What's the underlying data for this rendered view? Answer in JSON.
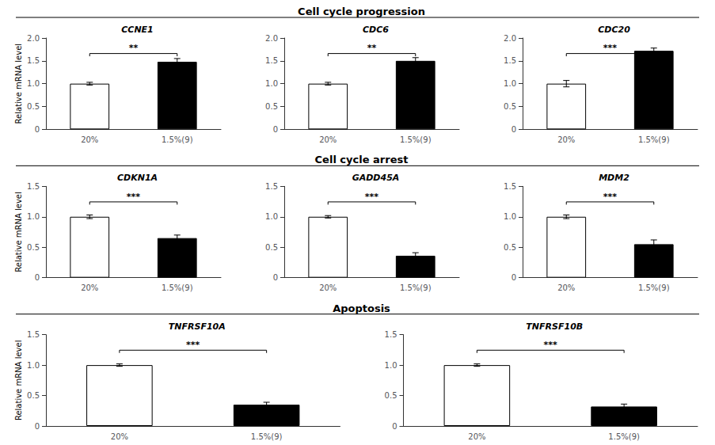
{
  "chart_data": [
    {
      "type": "bar",
      "section_title": "Cell cycle progression",
      "title": "CCNE1",
      "ylabel": "Relative mRNA level",
      "categories": [
        "20%",
        "1.5%(9)"
      ],
      "values": [
        1.0,
        1.48
      ],
      "errors": [
        0.03,
        0.07
      ],
      "annotation": "**",
      "colors": [
        "#ffffff",
        "#000000"
      ],
      "ylim": [
        0,
        2.0
      ],
      "yticks": [
        0,
        0.5,
        {
          "value": 1.0,
          "label": "1.0"
        },
        1.5,
        {
          "value": 2.0,
          "label": "2.0"
        }
      ],
      "grid": false
    },
    {
      "type": "bar",
      "section_title": "Cell cycle progression",
      "title": "CDC6",
      "categories": [
        "20%",
        "1.5%(9)"
      ],
      "values": [
        1.0,
        1.5
      ],
      "errors": [
        0.03,
        0.07
      ],
      "annotation": "**",
      "colors": [
        "#ffffff",
        "#000000"
      ],
      "ylim": [
        0,
        2.0
      ],
      "yticks": [
        0,
        0.5,
        {
          "value": 1.0,
          "label": "1.0"
        },
        1.5,
        {
          "value": 2.0,
          "label": "2.0"
        }
      ],
      "grid": false
    },
    {
      "type": "bar",
      "section_title": "Cell cycle progression",
      "title": "CDC20",
      "categories": [
        "20%",
        "1.5%(9)"
      ],
      "values": [
        1.0,
        1.72
      ],
      "errors": [
        0.07,
        0.06
      ],
      "annotation": "***",
      "colors": [
        "#ffffff",
        "#000000"
      ],
      "ylim": [
        0,
        2.0
      ],
      "yticks": [
        0,
        0.5,
        {
          "value": 1.0,
          "label": "1.0"
        },
        1.5,
        {
          "value": 2.0,
          "label": "2.0"
        }
      ],
      "grid": false
    },
    {
      "type": "bar",
      "section_title": "Cell cycle arrest",
      "title": "CDKN1A",
      "ylabel": "Relative mRNA level",
      "categories": [
        "20%",
        "1.5%(9)"
      ],
      "values": [
        1.0,
        0.65
      ],
      "errors": [
        0.03,
        0.05
      ],
      "annotation": "***",
      "colors": [
        "#ffffff",
        "#000000"
      ],
      "ylim": [
        0,
        1.5
      ],
      "yticks": [
        0,
        0.5,
        {
          "value": 1.0,
          "label": "1.0"
        },
        1.5
      ],
      "grid": false
    },
    {
      "type": "bar",
      "section_title": "Cell cycle arrest",
      "title": "GADD45A",
      "categories": [
        "20%",
        "1.5%(9)"
      ],
      "values": [
        1.0,
        0.36
      ],
      "errors": [
        0.02,
        0.05
      ],
      "annotation": "***",
      "colors": [
        "#ffffff",
        "#000000"
      ],
      "ylim": [
        0,
        1.5
      ],
      "yticks": [
        0,
        0.5,
        {
          "value": 1.0,
          "label": "1.0"
        },
        1.5
      ],
      "grid": false
    },
    {
      "type": "bar",
      "section_title": "Cell cycle arrest",
      "title": "MDM2",
      "categories": [
        "20%",
        "1.5%(9)"
      ],
      "values": [
        1.0,
        0.55
      ],
      "errors": [
        0.03,
        0.07
      ],
      "annotation": "***",
      "colors": [
        "#ffffff",
        "#000000"
      ],
      "ylim": [
        0,
        1.5
      ],
      "yticks": [
        0,
        0.5,
        {
          "value": 1.0,
          "label": "1.0"
        },
        1.5
      ],
      "grid": false
    },
    {
      "type": "bar",
      "section_title": "Apoptosis",
      "title": "TNFRSF10A",
      "ylabel": "Relative mRNA level",
      "categories": [
        "20%",
        "1.5%(9)"
      ],
      "values": [
        1.0,
        0.35
      ],
      "errors": [
        0.02,
        0.04
      ],
      "annotation": "***",
      "colors": [
        "#ffffff",
        "#000000"
      ],
      "ylim": [
        0,
        1.5
      ],
      "yticks": [
        0,
        0.5,
        {
          "value": 1.0,
          "label": "1.0"
        },
        1.5
      ],
      "grid": false
    },
    {
      "type": "bar",
      "section_title": "Apoptosis",
      "title": "TNFRSF10B",
      "categories": [
        "20%",
        "1.5%(9)"
      ],
      "values": [
        1.0,
        0.32
      ],
      "errors": [
        0.02,
        0.04
      ],
      "annotation": "***",
      "colors": [
        "#ffffff",
        "#000000"
      ],
      "ylim": [
        0,
        1.5
      ],
      "yticks": [
        0,
        0.5,
        {
          "value": 1.0,
          "label": "1.0"
        },
        1.5
      ],
      "grid": false
    }
  ]
}
